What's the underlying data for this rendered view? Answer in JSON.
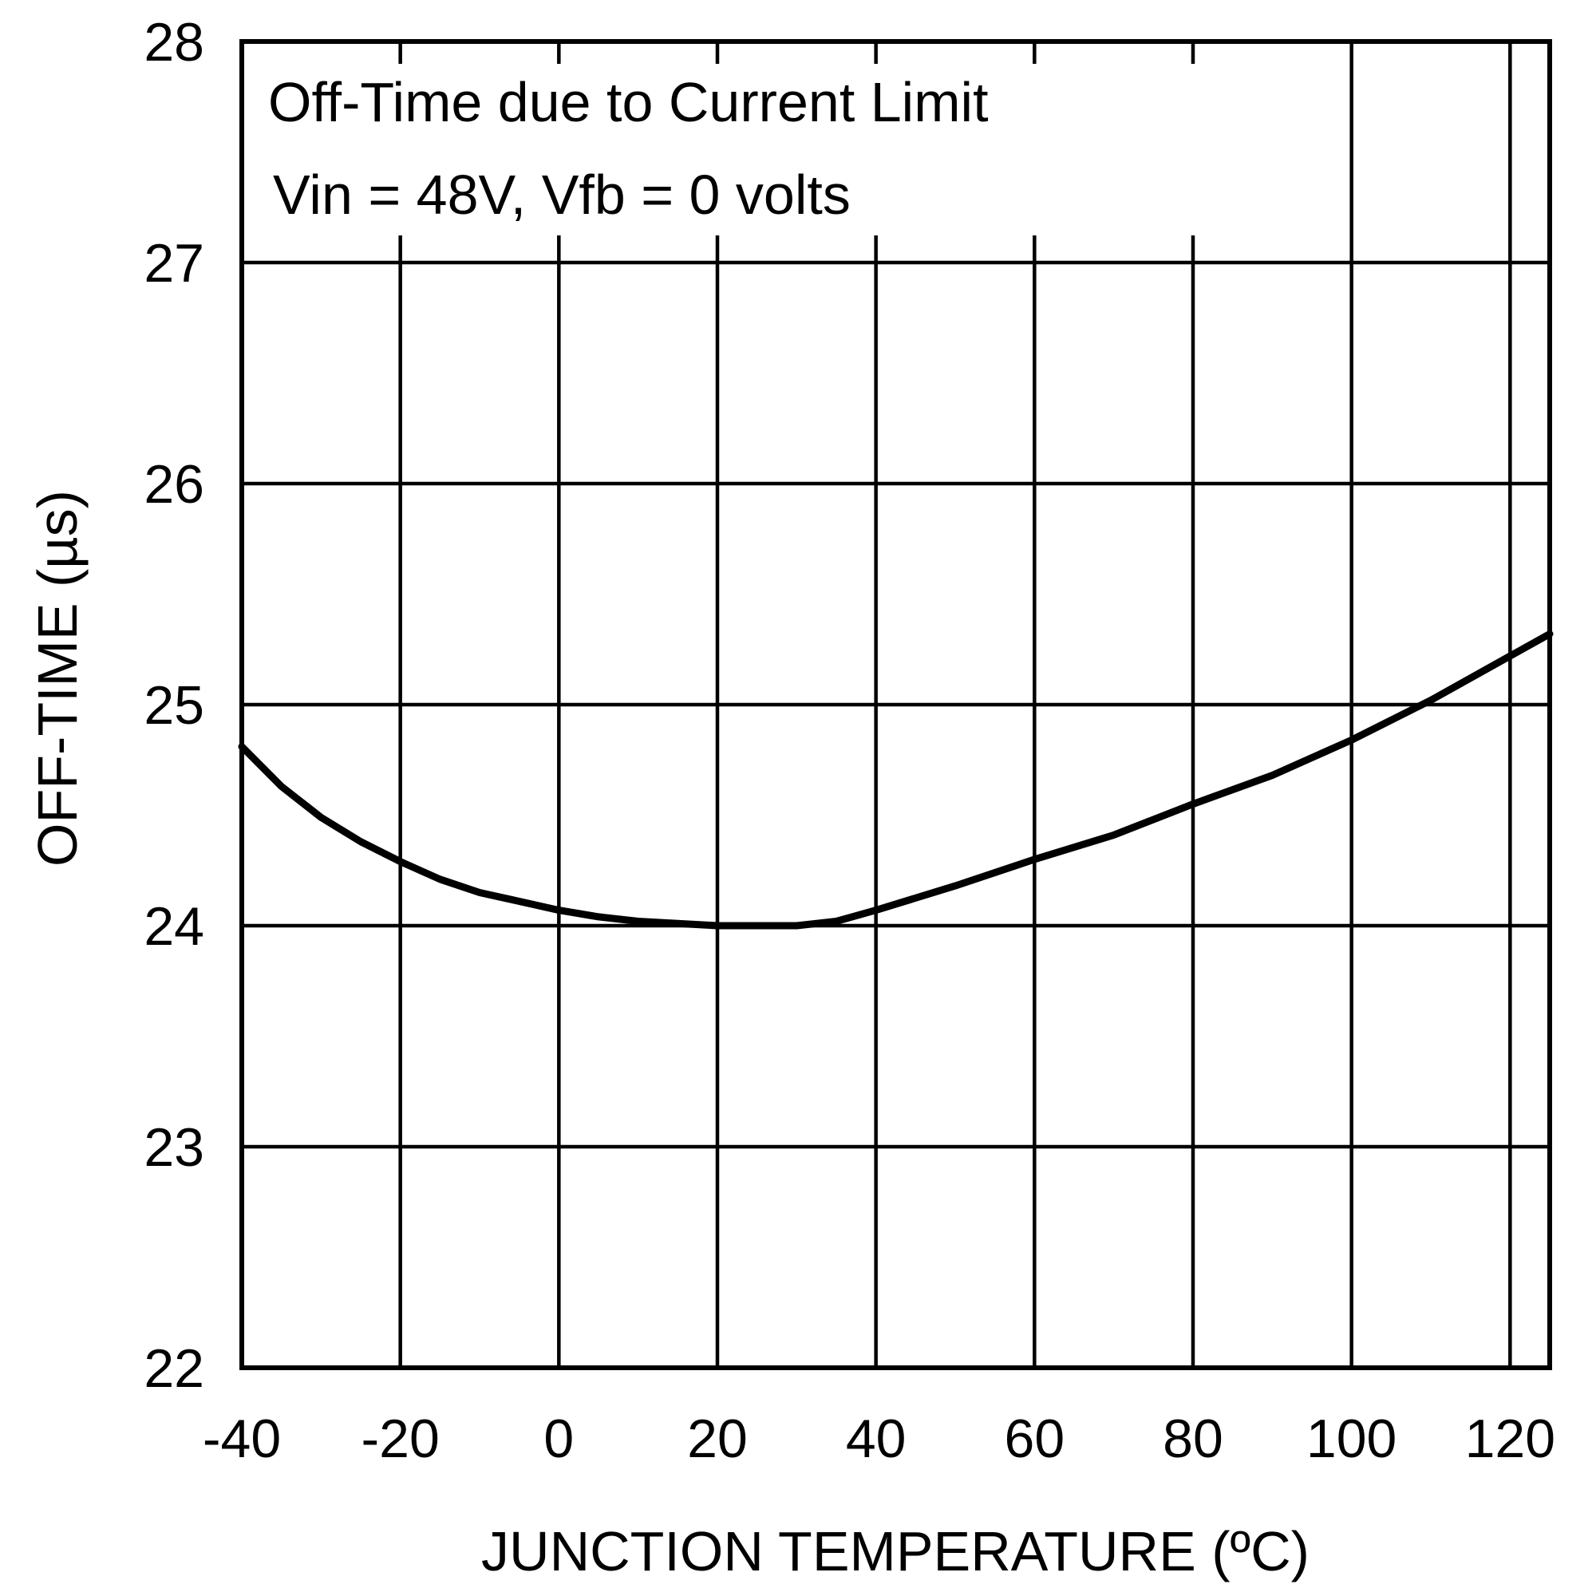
{
  "chart_data": {
    "type": "line",
    "annotation_lines": [
      "Off-Time due to Current Limit",
      "Vin = 48V, Vfb = 0 volts"
    ],
    "xlabel": "JUNCTION TEMPERATURE (ºC)",
    "ylabel": "OFF-TIME (µs)",
    "xlim": [
      -40,
      125
    ],
    "ylim": [
      22,
      28
    ],
    "x_ticks": [
      -40,
      -20,
      0,
      20,
      40,
      60,
      80,
      100,
      120
    ],
    "y_ticks": [
      22,
      23,
      24,
      25,
      26,
      27,
      28
    ],
    "grid": true,
    "series": [
      {
        "color": "#000000",
        "x": [
          -40,
          -35,
          -30,
          -25,
          -20,
          -15,
          -10,
          -5,
          0,
          5,
          10,
          15,
          20,
          25,
          30,
          35,
          40,
          50,
          60,
          70,
          80,
          90,
          100,
          110,
          120,
          125
        ],
        "y": [
          24.81,
          24.63,
          24.49,
          24.38,
          24.29,
          24.21,
          24.15,
          24.11,
          24.07,
          24.04,
          24.02,
          24.01,
          24.0,
          24.0,
          24.0,
          24.02,
          24.07,
          24.18,
          24.3,
          24.41,
          24.55,
          24.68,
          24.84,
          25.02,
          25.22,
          25.32
        ]
      }
    ]
  }
}
